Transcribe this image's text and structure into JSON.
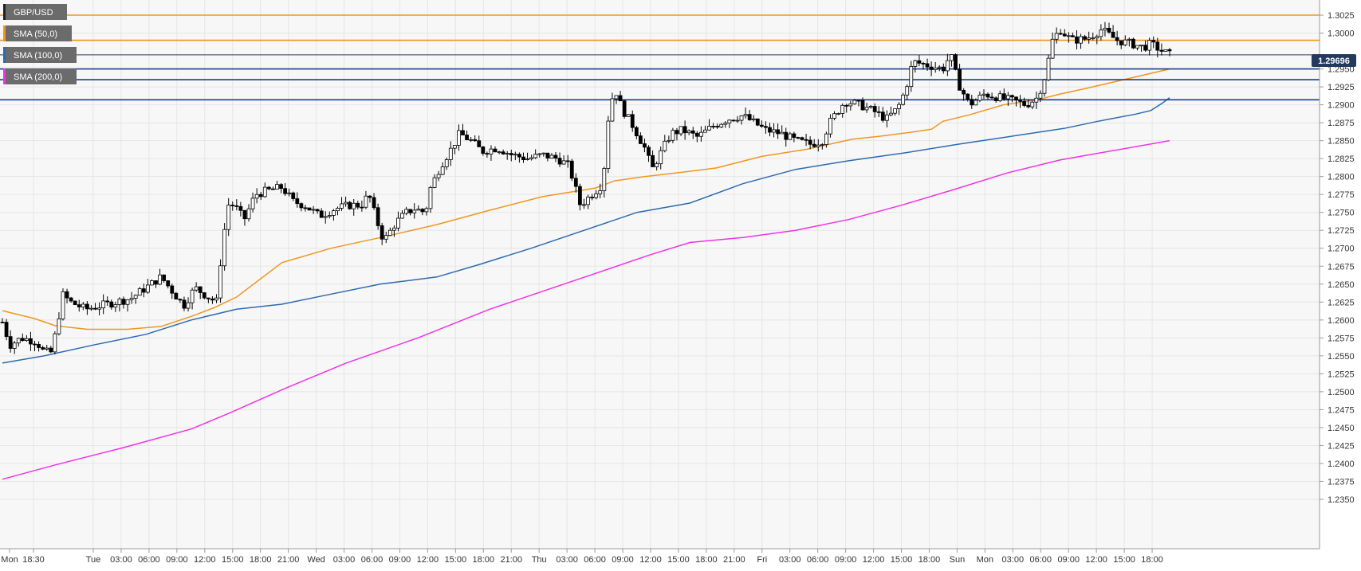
{
  "chart_data": {
    "type": "candlestick",
    "symbol": "GBP/USD",
    "legend": [
      {
        "label": "GBP/USD",
        "color": "#222222"
      },
      {
        "label": "SMA (50,0)",
        "color": "#f0961e"
      },
      {
        "label": "SMA (100,0)",
        "color": "#2c6bb0"
      },
      {
        "label": "SMA (200,0)",
        "color": "#f032e6"
      }
    ],
    "last_price": 1.29696,
    "last_price_label": "1.29696",
    "ylim": [
      1.2345,
      1.3045
    ],
    "y_ticks": [
      "1.3025",
      "1.3000",
      "1.2950",
      "1.2925",
      "1.2900",
      "1.2875",
      "1.2850",
      "1.2825",
      "1.2800",
      "1.2775",
      "1.2750",
      "1.2725",
      "1.2700",
      "1.2675",
      "1.2650",
      "1.2625",
      "1.2600",
      "1.2575",
      "1.2550",
      "1.2525",
      "1.2500",
      "1.2475",
      "1.2450",
      "1.2425",
      "1.2400",
      "1.2375",
      "1.2350"
    ],
    "x_ticks": [
      "Mon",
      "18:30",
      "Tue",
      "03:00",
      "06:00",
      "09:00",
      "12:00",
      "15:00",
      "18:00",
      "21:00",
      "Wed",
      "03:00",
      "06:00",
      "09:00",
      "12:00",
      "15:00",
      "18:00",
      "21:00",
      "Thu",
      "03:00",
      "06:00",
      "09:00",
      "12:00",
      "15:00",
      "18:00",
      "21:00",
      "Fri",
      "03:00",
      "06:00",
      "09:00",
      "12:00",
      "15:00",
      "18:00",
      "Sun",
      "Mon",
      "03:00",
      "06:00",
      "09:00",
      "12:00",
      "15:00",
      "18:00"
    ],
    "horizontal_levels": [
      {
        "price": 1.3025,
        "color": "#f0961e"
      },
      {
        "price": 1.299,
        "color": "#f0961e"
      },
      {
        "price": 1.295,
        "color": "#1b3f8b"
      },
      {
        "price": 1.2935,
        "color": "#1b3f8b"
      },
      {
        "price": 1.2907,
        "color": "#1b3f8b"
      },
      {
        "price": 1.29696,
        "color": "#233a5e"
      }
    ],
    "sma50": [
      1.2613,
      1.2602,
      1.2592,
      1.2587,
      1.2587,
      1.2591,
      1.2605,
      1.2617,
      1.2632,
      1.268,
      1.27,
      1.2716,
      1.2733,
      1.2753,
      1.2772,
      1.2784,
      1.2794,
      1.28,
      1.2806,
      1.2812,
      1.2828,
      1.2838,
      1.2852,
      1.2856,
      1.2862,
      1.2866,
      1.2877,
      1.2886,
      1.29,
      1.2907,
      1.2915,
      1.2923,
      1.295
    ],
    "sma50_x": [
      0,
      0.0275,
      0.0453,
      0.0728,
      0.1068,
      0.1359,
      0.1618,
      0.1812,
      0.2006,
      0.2395,
      0.2816,
      0.3269,
      0.3722,
      0.4175,
      0.4628,
      0.5081,
      0.5243,
      0.5502,
      0.5826,
      0.6117,
      0.6505,
      0.6893,
      0.7282,
      0.7508,
      0.7799,
      0.7961,
      0.8058,
      0.8285,
      0.8576,
      0.8867,
      0.9061,
      0.9288,
      1.0
    ],
    "sma100": [
      1.254,
      1.255,
      1.2565,
      1.258,
      1.26,
      1.2615,
      1.2622,
      1.2635,
      1.265,
      1.266,
      1.2677,
      1.27,
      1.2725,
      1.275,
      1.2763,
      1.279,
      1.281,
      1.2822,
      1.2833,
      1.2845,
      1.2856,
      1.2867,
      1.2877,
      1.2887,
      1.2892,
      1.2902,
      1.291
    ],
    "sma100_x": [
      0,
      0.0356,
      0.0777,
      0.123,
      0.1618,
      0.2006,
      0.2395,
      0.2783,
      0.3236,
      0.3722,
      0.4078,
      0.4531,
      0.4984,
      0.5437,
      0.589,
      0.6343,
      0.6796,
      0.7249,
      0.7735,
      0.8188,
      0.8641,
      0.9094,
      0.9385,
      0.9709,
      0.9838,
      0.9935,
      1.0
    ],
    "sma200": [
      1.2378,
      1.2398,
      1.2422,
      1.2448,
      1.247,
      1.2505,
      1.254,
      1.2575,
      1.2615,
      1.264,
      1.2665,
      1.269,
      1.2708,
      1.2715,
      1.2725,
      1.274,
      1.276,
      1.2782,
      1.2805,
      1.2823,
      1.285
    ],
    "sma200_x": [
      0,
      0.0453,
      0.1036,
      0.1618,
      0.1942,
      0.2427,
      0.2945,
      0.356,
      0.4175,
      0.4628,
      0.5081,
      0.5534,
      0.589,
      0.6343,
      0.6796,
      0.7249,
      0.7702,
      0.8155,
      0.8608,
      0.9061,
      1.0
    ],
    "candle_path": [
      [
        0,
        1.2597
      ],
      [
        0.0065,
        1.2565
      ],
      [
        0.0162,
        1.2575
      ],
      [
        0.0291,
        1.257
      ],
      [
        0.0356,
        1.2555
      ],
      [
        0.0421,
        1.2555
      ],
      [
        0.0453,
        1.258
      ],
      [
        0.0518,
        1.2635
      ],
      [
        0.0583,
        1.2625
      ],
      [
        0.0712,
        1.2615
      ],
      [
        0.0841,
        1.262
      ],
      [
        0.0971,
        1.2625
      ],
      [
        0.11,
        1.263
      ],
      [
        0.123,
        1.2645
      ],
      [
        0.1359,
        1.266
      ],
      [
        0.1456,
        1.264
      ],
      [
        0.1553,
        1.262
      ],
      [
        0.165,
        1.2645
      ],
      [
        0.178,
        1.263
      ],
      [
        0.1845,
        1.2625
      ],
      [
        0.1877,
        1.27
      ],
      [
        0.1942,
        1.2765
      ],
      [
        0.2006,
        1.2755
      ],
      [
        0.2071,
        1.274
      ],
      [
        0.2168,
        1.2775
      ],
      [
        0.2265,
        1.278
      ],
      [
        0.2395,
        1.2785
      ],
      [
        0.2492,
        1.2765
      ],
      [
        0.2589,
        1.276
      ],
      [
        0.2718,
        1.2745
      ],
      [
        0.2848,
        1.2755
      ],
      [
        0.2977,
        1.276
      ],
      [
        0.3074,
        1.276
      ],
      [
        0.3139,
        1.2775
      ],
      [
        0.3204,
        1.274
      ],
      [
        0.3268,
        1.271
      ],
      [
        0.3366,
        1.2735
      ],
      [
        0.3463,
        1.275
      ],
      [
        0.3528,
        1.2755
      ],
      [
        0.3625,
        1.275
      ],
      [
        0.3657,
        1.278
      ],
      [
        0.3754,
        1.2815
      ],
      [
        0.3851,
        1.284
      ],
      [
        0.3916,
        1.286
      ],
      [
        0.4013,
        1.285
      ],
      [
        0.411,
        1.2835
      ],
      [
        0.4239,
        1.284
      ],
      [
        0.4369,
        1.283
      ],
      [
        0.4498,
        1.2825
      ],
      [
        0.4628,
        1.283
      ],
      [
        0.4757,
        1.2825
      ],
      [
        0.4854,
        1.2815
      ],
      [
        0.4951,
        1.276
      ],
      [
        0.5081,
        1.278
      ],
      [
        0.5146,
        1.279
      ],
      [
        0.5178,
        1.287
      ],
      [
        0.5243,
        1.2925
      ],
      [
        0.5307,
        1.2895
      ],
      [
        0.5404,
        1.287
      ],
      [
        0.5502,
        1.284
      ],
      [
        0.5566,
        1.281
      ],
      [
        0.5663,
        1.284
      ],
      [
        0.5728,
        1.286
      ],
      [
        0.5825,
        1.2865
      ],
      [
        0.5955,
        1.2855
      ],
      [
        0.6084,
        1.287
      ],
      [
        0.6214,
        1.288
      ],
      [
        0.6343,
        1.2885
      ],
      [
        0.644,
        1.2875
      ],
      [
        0.6537,
        1.2865
      ],
      [
        0.6667,
        1.286
      ],
      [
        0.6796,
        1.285
      ],
      [
        0.6926,
        1.2845
      ],
      [
        0.7023,
        1.285
      ],
      [
        0.7087,
        1.2875
      ],
      [
        0.7217,
        1.2905
      ],
      [
        0.7346,
        1.29
      ],
      [
        0.7476,
        1.289
      ],
      [
        0.7573,
        1.288
      ],
      [
        0.767,
        1.2895
      ],
      [
        0.7735,
        1.292
      ],
      [
        0.78,
        1.296
      ],
      [
        0.7929,
        1.2955
      ],
      [
        0.8058,
        1.295
      ],
      [
        0.8123,
        1.297
      ],
      [
        0.8188,
        1.293
      ],
      [
        0.8285,
        1.29
      ],
      [
        0.8414,
        1.2915
      ],
      [
        0.8544,
        1.291
      ],
      [
        0.8673,
        1.2905
      ],
      [
        0.877,
        1.29
      ],
      [
        0.8867,
        1.291
      ],
      [
        0.8932,
        1.294
      ],
      [
        0.8997,
        1.299
      ],
      [
        0.9061,
        1.3005
      ],
      [
        0.9158,
        1.299
      ],
      [
        0.9288,
        1.2992
      ],
      [
        0.9417,
        1.3005
      ],
      [
        0.9547,
        1.299
      ],
      [
        0.9676,
        1.2985
      ],
      [
        0.9773,
        1.298
      ],
      [
        0.9838,
        1.2985
      ],
      [
        0.9935,
        1.2975
      ],
      [
        1.0,
        1.297
      ]
    ]
  }
}
